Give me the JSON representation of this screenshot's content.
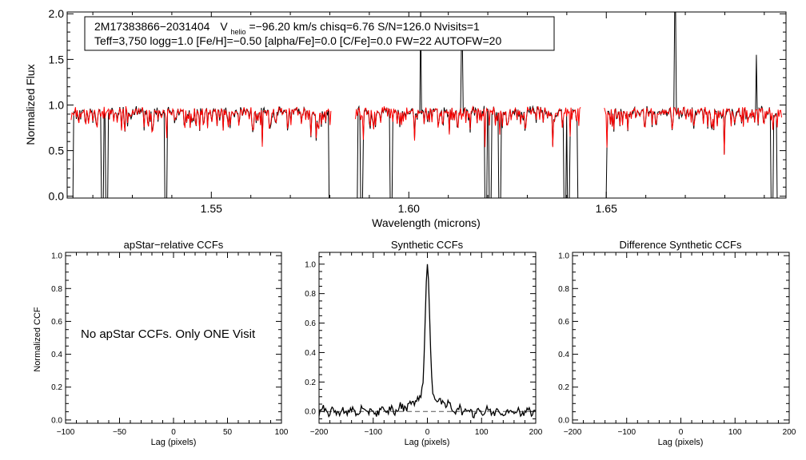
{
  "colors": {
    "axis": "#000000",
    "observed": "#000000",
    "model": "#ff0000",
    "zero_line": "#555555"
  },
  "chart_data": [
    {
      "id": "spectrum",
      "type": "line",
      "title": "",
      "xlabel": "Wavelength (microns)",
      "ylabel": "Normalized Flux",
      "xlim": [
        1.5135,
        1.6955
      ],
      "ylim": [
        -0.02,
        2.02
      ],
      "xticks": [
        1.55,
        1.6,
        1.65
      ],
      "xtick_labels": [
        "1.55",
        "1.60",
        "1.65"
      ],
      "yticks": [
        0.0,
        0.5,
        1.0,
        1.5,
        2.0
      ],
      "ytick_labels": [
        "0.0",
        "0.5",
        "1.0",
        "1.5",
        "2.0"
      ],
      "chips": [
        [
          1.5145,
          1.5805
        ],
        [
          1.5865,
          1.6435
        ],
        [
          1.6495,
          1.6945
        ]
      ],
      "continuum_level": 0.93,
      "series": [
        {
          "name": "observed",
          "color": "#000000"
        },
        {
          "name": "model",
          "color": "#ff0000"
        }
      ],
      "annotation": {
        "line1_star": "2M17383866−2031404",
        "line1_v": "V",
        "line1_v_sub": "helio",
        "line1_rest": "=−96.20 km/s  chisq=6.76  S/N=126.0  Nvisits=1",
        "line2": "Teff=3,750 logg=1.0 [Fe/H]=−0.50 [alpha/Fe]=0.0 [C/Fe]=0.0 FW=22 AUTOFW=20"
      }
    },
    {
      "id": "apstar_ccf",
      "type": "line",
      "title": "apStar−relative CCFs",
      "xlabel": "Lag (pixels)",
      "ylabel": "Normalized CCF",
      "xlim": [
        -100,
        100
      ],
      "ylim": [
        -0.02,
        1.02
      ],
      "xticks": [
        -100,
        -50,
        0,
        50,
        100
      ],
      "xtick_labels": [
        "−100",
        "−50",
        "0",
        "50",
        "100"
      ],
      "yticks": [
        0.0,
        0.2,
        0.4,
        0.6,
        0.8,
        1.0
      ],
      "ytick_labels": [
        "0.0",
        "0.2",
        "0.4",
        "0.6",
        "0.8",
        "1.0"
      ],
      "message": "No apStar CCFs.  Only ONE Visit"
    },
    {
      "id": "synthetic_ccf",
      "type": "line",
      "title": "Synthetic CCFs",
      "xlabel": "Lag (pixels)",
      "xlim": [
        -200,
        200
      ],
      "ylim": [
        -0.08,
        1.08
      ],
      "xticks": [
        -200,
        -100,
        0,
        100,
        200
      ],
      "xtick_labels": [
        "−200",
        "−100",
        "0",
        "100",
        "200"
      ],
      "yticks": [
        0.0,
        0.2,
        0.4,
        0.6,
        0.8,
        1.0
      ],
      "ytick_labels": [
        "0.0",
        "0.2",
        "0.4",
        "0.6",
        "0.8",
        "1.0"
      ],
      "peak": {
        "x": 0,
        "y": 1.0
      },
      "baseline": 0.0
    },
    {
      "id": "difference_ccf",
      "type": "line",
      "title": "Difference Synthetic CCFs",
      "xlabel": "Lag (pixels)",
      "xlim": [
        -200,
        200
      ],
      "ylim": [
        -0.02,
        1.02
      ],
      "xticks": [
        -200,
        -100,
        0,
        100,
        200
      ],
      "xtick_labels": [
        "−200",
        "−100",
        "0",
        "100",
        "200"
      ],
      "yticks": [
        0.0,
        0.2,
        0.4,
        0.6,
        0.8,
        1.0
      ],
      "ytick_labels": [
        "0.0",
        "0.2",
        "0.4",
        "0.6",
        "0.8",
        "1.0"
      ]
    }
  ]
}
